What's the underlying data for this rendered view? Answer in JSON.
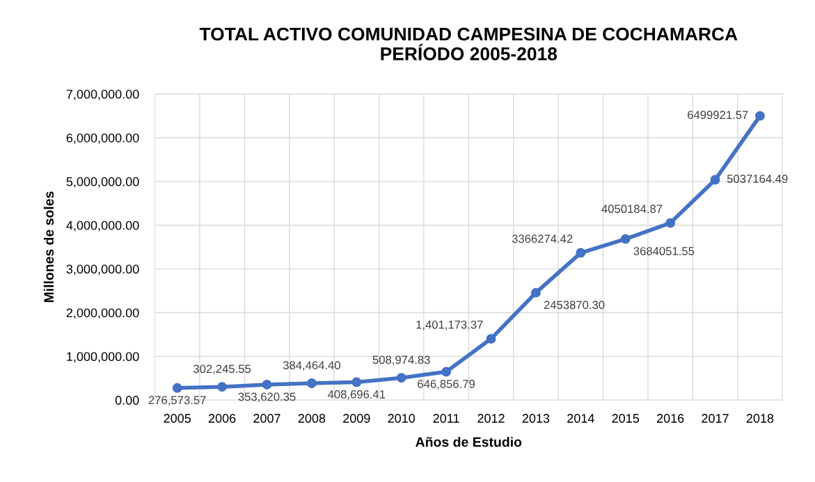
{
  "chart_data": {
    "type": "line",
    "title": "TOTAL ACTIVO COMUNIDAD CAMPESINA DE COCHAMARCA\nPERÍODO 2005-2018",
    "xlabel": "Años de Estudio",
    "ylabel": "Millones de soles",
    "categories": [
      "2005",
      "2006",
      "2007",
      "2008",
      "2009",
      "2010",
      "2011",
      "2012",
      "2013",
      "2014",
      "2015",
      "2016",
      "2017",
      "2018"
    ],
    "series": [
      {
        "color": "#4472c4",
        "values": [
          276573.57,
          302245.55,
          353620.35,
          384464.4,
          408696.41,
          508974.83,
          646856.79,
          1401173.37,
          2453870.3,
          3366274.42,
          3684051.55,
          4050184.87,
          5037164.49,
          6499921.57
        ],
        "value_labels": [
          "276,573.57",
          "302,245.55",
          "353,620.35",
          "384,464.40",
          "408,696.41",
          "508,974.83",
          "646,856.79",
          "1,401,173.37",
          "2453870.30",
          "3366274.42",
          "3684051.55",
          "4050184.87",
          "5037164.49",
          "6499921.57"
        ]
      }
    ],
    "ylim": [
      0,
      7000000
    ],
    "yticks": [
      {
        "value": 0,
        "label": "0.00"
      },
      {
        "value": 1000000,
        "label": "1,000,000.00"
      },
      {
        "value": 2000000,
        "label": "2,000,000.00"
      },
      {
        "value": 3000000,
        "label": "3,000,000.00"
      },
      {
        "value": 4000000,
        "label": "4,000,000.00"
      },
      {
        "value": 5000000,
        "label": "5,000,000.00"
      },
      {
        "value": 6000000,
        "label": "6,000,000.00"
      },
      {
        "value": 7000000,
        "label": "7,000,000.00"
      }
    ],
    "grid": true,
    "marker": "circle",
    "line_style": "solid"
  }
}
